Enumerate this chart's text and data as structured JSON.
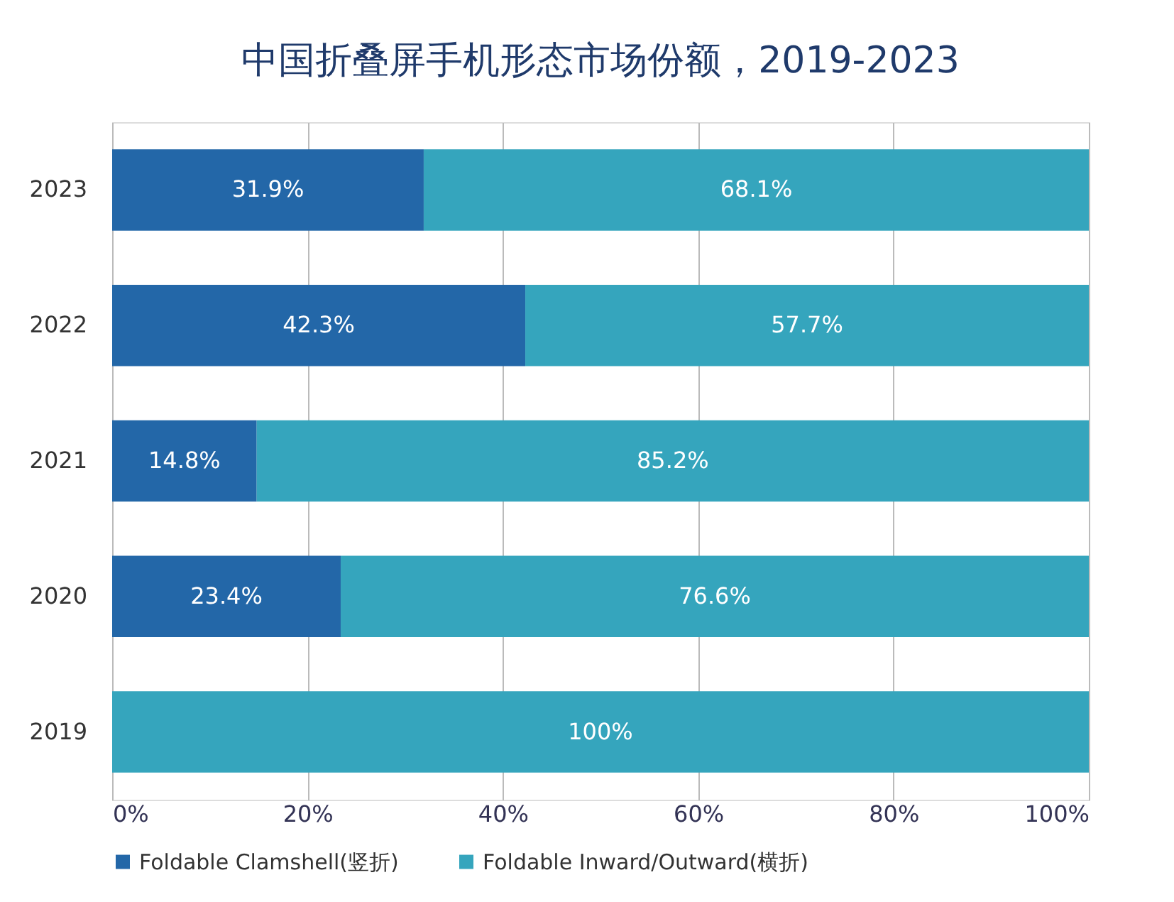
{
  "chart_data": {
    "type": "bar",
    "orientation": "horizontal",
    "stacked": true,
    "title": "中国折叠屏手机形态市场份额，2019-2023",
    "categories": [
      "2023",
      "2022",
      "2021",
      "2020",
      "2019"
    ],
    "series": [
      {
        "name": "Foldable Clamshell(竖折)",
        "color": "#2367a8",
        "values": [
          31.9,
          42.3,
          14.8,
          23.4,
          0
        ],
        "value_labels": [
          "31.9%",
          "42.3%",
          "14.8%",
          "23.4%",
          null
        ]
      },
      {
        "name": "Foldable Inward/Outward(横折)",
        "color": "#35a5bd",
        "values": [
          68.1,
          57.7,
          85.2,
          76.6,
          100
        ],
        "value_labels": [
          "68.1%",
          "57.7%",
          "85.2%",
          "76.6%",
          "100%"
        ]
      }
    ],
    "xlim": [
      0,
      100
    ],
    "xticks": [
      {
        "value": 0,
        "label": "0%"
      },
      {
        "value": 20,
        "label": "20%"
      },
      {
        "value": 40,
        "label": "40%"
      },
      {
        "value": 60,
        "label": "60%"
      },
      {
        "value": 80,
        "label": "80%"
      },
      {
        "value": 100,
        "label": "100%"
      }
    ],
    "grid": "x",
    "legend": "bottom"
  }
}
